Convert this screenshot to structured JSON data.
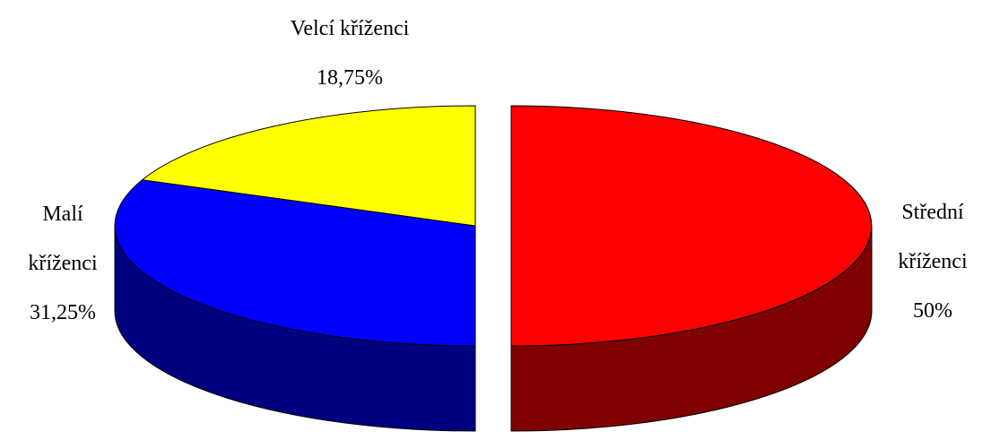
{
  "chart_data": {
    "type": "pie3d",
    "categories": [
      "Střední kříženci",
      "Malí kříženci",
      "Velcí kříženci"
    ],
    "values": [
      50,
      31.25,
      18.75
    ],
    "value_labels": [
      "50%",
      "31,25%",
      "18,75%"
    ],
    "colors": [
      "#ff0000",
      "#0000ff",
      "#ffff00"
    ],
    "side_colors": [
      "#800000",
      "#000080",
      "#808000"
    ]
  }
}
